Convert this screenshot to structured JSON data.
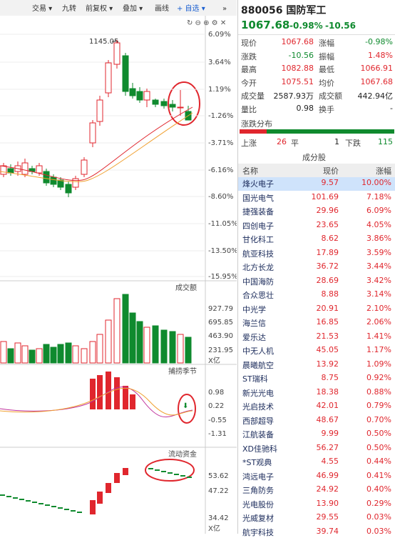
{
  "toolbar": {
    "items": [
      "交易 ▾",
      "九转",
      "前复权 ▾",
      "叠加 ▾",
      "画线",
      "+ 自选 ▾",
      "»"
    ]
  },
  "chart": {
    "high_label": "1145.05",
    "price_ticks": [
      "6.09%",
      "3.64%",
      "1.19%",
      "-1.26%",
      "-3.71%",
      "-6.16%",
      "-8.60%",
      "-11.05%",
      "-13.50%",
      "-15.95%"
    ],
    "volume": {
      "title": "成交额",
      "ticks": [
        "927.79",
        "695.85",
        "463.90",
        "231.95"
      ],
      "unit": "X亿"
    },
    "indicator": {
      "title": "捕捞季节",
      "ticks": [
        "0.98",
        "0.22",
        "-0.55",
        "-1.31"
      ]
    },
    "flow": {
      "title": "流动资金",
      "ticks": [
        "53.62",
        "47.22",
        "34.42"
      ],
      "unit": "X亿"
    }
  },
  "quote": {
    "code_name": "880056 国防军工",
    "price": "1067.68",
    "change_pct": "-0.98%",
    "change": "-10.56",
    "stats": [
      [
        "现价",
        "1067.68",
        "涨幅",
        "-0.98%"
      ],
      [
        "涨跌",
        "-10.56",
        "振幅",
        "1.48%"
      ],
      [
        "最高",
        "1082.88",
        "最低",
        "1066.91"
      ],
      [
        "今开",
        "1075.51",
        "均价",
        "1067.68"
      ],
      [
        "成交量",
        "2587.93万",
        "成交额",
        "442.94亿"
      ],
      [
        "量比",
        "0.98",
        "换手",
        "-"
      ]
    ],
    "distribution": {
      "title": "涨跌分布",
      "up_label": "上涨",
      "up": "26",
      "flat_label": "平",
      "flat": "1",
      "down_label": "下跌",
      "down": "115"
    }
  },
  "constituents": {
    "title": "成分股",
    "header": [
      "名称",
      "现价",
      "涨幅"
    ],
    "rows": [
      [
        "烽火电子",
        "9.57",
        "10.00%"
      ],
      [
        "国光电气",
        "101.69",
        "7.18%"
      ],
      [
        "捷强装备",
        "29.96",
        "6.09%"
      ],
      [
        "四创电子",
        "23.65",
        "4.05%"
      ],
      [
        "甘化科工",
        "8.62",
        "3.86%"
      ],
      [
        "航亚科技",
        "17.89",
        "3.59%"
      ],
      [
        "北方长龙",
        "36.72",
        "3.44%"
      ],
      [
        "中国海防",
        "28.69",
        "3.42%"
      ],
      [
        "合众思壮",
        "8.88",
        "3.14%"
      ],
      [
        "中光学",
        "20.91",
        "2.10%"
      ],
      [
        "海兰信",
        "16.85",
        "2.06%"
      ],
      [
        "爱乐达",
        "21.53",
        "1.41%"
      ],
      [
        "中无人机",
        "45.05",
        "1.17%"
      ],
      [
        "晨曦航空",
        "13.92",
        "1.09%"
      ],
      [
        "ST瑞科",
        "8.75",
        "0.92%"
      ],
      [
        "新光光电",
        "18.38",
        "0.88%"
      ],
      [
        "光启技术",
        "42.01",
        "0.79%"
      ],
      [
        "西部超导",
        "48.67",
        "0.70%"
      ],
      [
        "江航装备",
        "9.99",
        "0.50%"
      ],
      [
        "XD佳驰科",
        "56.27",
        "0.50%"
      ],
      [
        "*ST观典",
        "4.55",
        "0.44%"
      ],
      [
        "鸿远电子",
        "46.99",
        "0.41%"
      ],
      [
        "三角防务",
        "24.92",
        "0.40%"
      ],
      [
        "光电股份",
        "13.90",
        "0.29%"
      ],
      [
        "光威复材",
        "29.55",
        "0.03%"
      ],
      [
        "航宇科技",
        "39.74",
        "0.03%"
      ]
    ]
  }
}
